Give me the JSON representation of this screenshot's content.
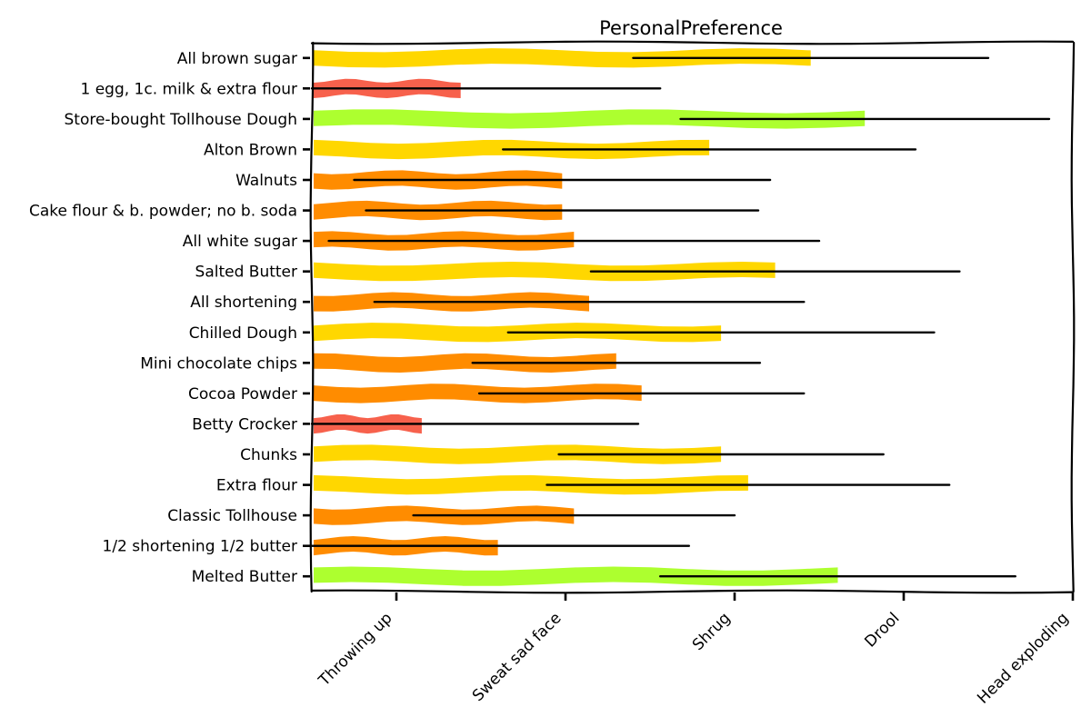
{
  "chart_data": {
    "type": "bar",
    "orientation": "horizontal",
    "title": "PersonalPreference",
    "xlabel": "",
    "ylabel": "",
    "xlim": [
      0.5,
      5.0
    ],
    "grid": false,
    "legend": "none",
    "x_ticks": [
      {
        "value": 1,
        "label": "Throwing up"
      },
      {
        "value": 2,
        "label": "Sweat sad face"
      },
      {
        "value": 3,
        "label": "Shrug"
      },
      {
        "value": 4,
        "label": "Drool"
      },
      {
        "value": 5,
        "label": "Head exploding"
      }
    ],
    "colors": {
      "red": "#f7614c",
      "orange": "#ff8c00",
      "yellow": "#ffd700",
      "green": "#adff2f",
      "error": "#000000"
    },
    "bars": [
      {
        "label": "All brown sugar",
        "value": 3.45,
        "error": 1.05,
        "color": "#ffd700"
      },
      {
        "label": "1 egg, 1c. milk & extra flour",
        "value": 1.38,
        "error": 1.18,
        "color": "#f7614c"
      },
      {
        "label": "Store-bought Tollhouse Dough",
        "value": 3.77,
        "error": 1.09,
        "color": "#adff2f"
      },
      {
        "label": "Alton Brown",
        "value": 2.85,
        "error": 1.22,
        "color": "#ffd700"
      },
      {
        "label": "Walnuts",
        "value": 1.98,
        "error": 1.23,
        "color": "#ff8c00"
      },
      {
        "label": "Cake flour & b. powder; no b. soda",
        "value": 1.98,
        "error": 1.16,
        "color": "#ff8c00"
      },
      {
        "label": "All white sugar",
        "value": 2.05,
        "error": 1.45,
        "color": "#ff8c00"
      },
      {
        "label": "Salted Butter",
        "value": 3.24,
        "error": 1.09,
        "color": "#ffd700"
      },
      {
        "label": "All shortening",
        "value": 2.14,
        "error": 1.27,
        "color": "#ff8c00"
      },
      {
        "label": "Chilled Dough",
        "value": 2.92,
        "error": 1.26,
        "color": "#ffd700"
      },
      {
        "label": "Mini chocolate chips",
        "value": 2.3,
        "error": 0.85,
        "color": "#ff8c00"
      },
      {
        "label": "Cocoa Powder",
        "value": 2.45,
        "error": 0.96,
        "color": "#ff8c00"
      },
      {
        "label": "Betty Crocker",
        "value": 1.15,
        "error": 1.28,
        "color": "#f7614c"
      },
      {
        "label": "Chunks",
        "value": 2.92,
        "error": 0.96,
        "color": "#ffd700"
      },
      {
        "label": "Extra flour",
        "value": 3.08,
        "error": 1.19,
        "color": "#ffd700"
      },
      {
        "label": "Classic Tollhouse",
        "value": 2.05,
        "error": 0.95,
        "color": "#ff8c00"
      },
      {
        "label": "1/2 shortening 1/2 butter",
        "value": 1.6,
        "error": 1.13,
        "color": "#ff8c00"
      },
      {
        "label": "Melted Butter",
        "value": 3.61,
        "error": 1.05,
        "color": "#adff2f"
      }
    ]
  }
}
